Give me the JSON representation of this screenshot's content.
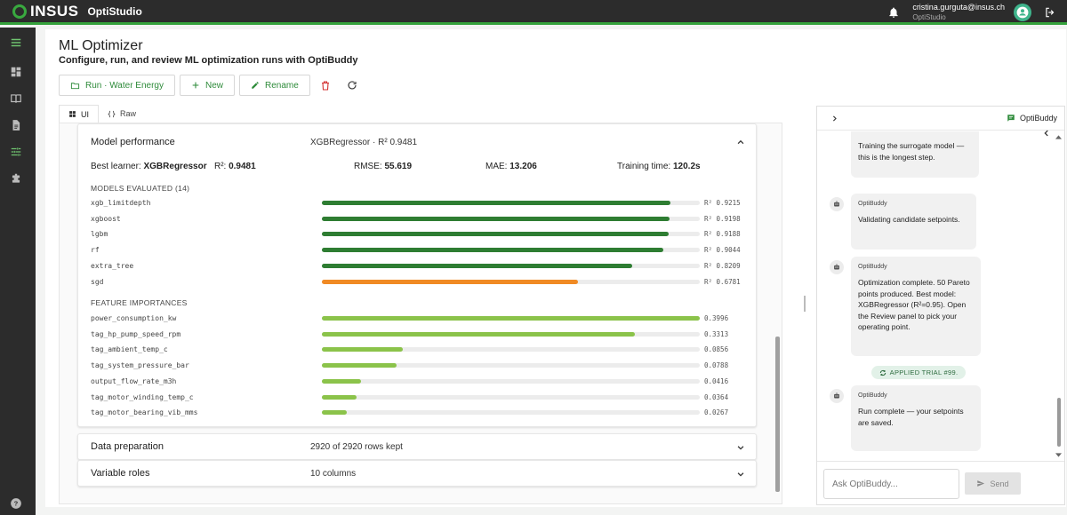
{
  "topbar": {
    "logo_text": "INSUS",
    "app_name": "OptiStudio",
    "user_email": "cristina.gurguta@insus.ch",
    "user_sub": "OptiStudio"
  },
  "page": {
    "title": "ML Optimizer",
    "subtitle": "Configure, run, and review ML optimization runs with OptiBuddy"
  },
  "toolbar": {
    "run_label": "Run · Water Energy",
    "new_label": "New",
    "rename_label": "Rename"
  },
  "tabs": [
    {
      "label": "UI"
    },
    {
      "label": "Raw"
    }
  ],
  "model_performance": {
    "title": "Model performance",
    "summary": "XGBRegressor · R² 0.9481",
    "best_learner_label": "Best learner:",
    "best_learner_value": "XGBRegressor",
    "r2_label": "R²:",
    "r2_value": "0.9481",
    "rmse_label": "RMSE:",
    "rmse_value": "55.619",
    "mae_label": "MAE:",
    "mae_value": "13.206",
    "training_label": "Training time:",
    "training_value": "120.2s",
    "models_label": "MODELS EVALUATED (14)",
    "models": [
      {
        "name": "xgb_limitdepth",
        "score": 0.9215,
        "label": "R² 0.9215"
      },
      {
        "name": "xgboost",
        "score": 0.9198,
        "label": "R² 0.9198"
      },
      {
        "name": "lgbm",
        "score": 0.9188,
        "label": "R² 0.9188"
      },
      {
        "name": "rf",
        "score": 0.9044,
        "label": "R² 0.9044"
      },
      {
        "name": "extra_tree",
        "score": 0.8209,
        "label": "R² 0.8209"
      },
      {
        "name": "sgd",
        "score": 0.6781,
        "label": "R² 0.6781"
      }
    ],
    "features_label": "FEATURE IMPORTANCES",
    "features": [
      {
        "name": "power_consumption_kw",
        "importance": 0.3996,
        "label": "0.3996"
      },
      {
        "name": "tag_hp_pump_speed_rpm",
        "importance": 0.3313,
        "label": "0.3313"
      },
      {
        "name": "tag_ambient_temp_c",
        "importance": 0.0856,
        "label": "0.0856"
      },
      {
        "name": "tag_system_pressure_bar",
        "importance": 0.0788,
        "label": "0.0788"
      },
      {
        "name": "output_flow_rate_m3h",
        "importance": 0.0416,
        "label": "0.0416"
      },
      {
        "name": "tag_motor_winding_temp_c",
        "importance": 0.0364,
        "label": "0.0364"
      },
      {
        "name": "tag_motor_bearing_vib_mms",
        "importance": 0.0267,
        "label": "0.0267"
      }
    ]
  },
  "data_preparation": {
    "title": "Data preparation",
    "summary": "2920 of 2920 rows kept"
  },
  "variable_roles": {
    "title": "Variable roles",
    "summary": "10 columns"
  },
  "chat": {
    "title": "OptiBuddy",
    "messages": [
      {
        "who": "",
        "text": "Training the surrogate model — this is the longest step."
      },
      {
        "who": "OptiBuddy",
        "text": "Validating candidate setpoints."
      },
      {
        "who": "OptiBuddy",
        "text": "Optimization complete. 50 Pareto points produced. Best model: XGBRegressor (R²=0.95). Open the Review panel to pick your operating point."
      },
      {
        "who": "OptiBuddy",
        "text": "Run complete — your setpoints are saved."
      }
    ],
    "applied_label": "APPLIED TRIAL #99.",
    "input_placeholder": "Ask OptiBuddy...",
    "send_label": "Send"
  },
  "colors": {
    "accent": "#2e8b3a",
    "bar_green": "#2e7d32",
    "bar_orange": "#f08a24",
    "bar_lightgreen": "#8bc34a"
  }
}
